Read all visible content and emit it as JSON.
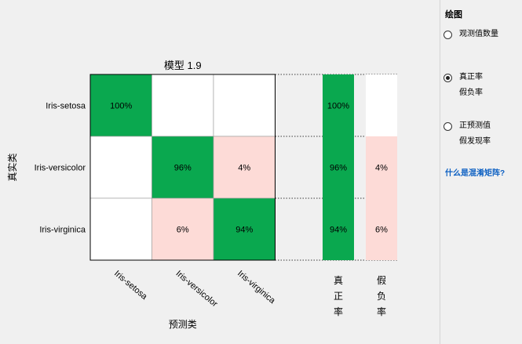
{
  "chart_data": {
    "type": "heatmap",
    "title": "模型 1.9",
    "xlabel": "预测类",
    "ylabel": "真实类",
    "classes": [
      "Iris-setosa",
      "Iris-versicolor",
      "Iris-virginica"
    ],
    "matrix": [
      [
        "100%",
        "",
        ""
      ],
      [
        "",
        "96%",
        "4%"
      ],
      [
        "",
        "6%",
        "94%"
      ]
    ],
    "tpr": [
      "100%",
      "96%",
      "94%"
    ],
    "fnr": [
      "",
      "4%",
      "6%"
    ],
    "summary_headers": [
      "真\n正\n率",
      "假\n负\n率"
    ],
    "colors": {
      "correct": "#0aa84f",
      "incorrect": "#fddbd7",
      "empty": "#ffffff"
    }
  },
  "panel": {
    "heading": "绘图",
    "options": [
      {
        "id": "counts",
        "lines": [
          "观测值数量"
        ],
        "checked": false
      },
      {
        "id": "tpr-fnr",
        "lines": [
          "真正率",
          "假负率"
        ],
        "checked": true
      },
      {
        "id": "ppv-fdr",
        "lines": [
          "正预测值",
          "假发现率"
        ],
        "checked": false
      }
    ],
    "help_link": "什么是混淆矩阵?"
  }
}
